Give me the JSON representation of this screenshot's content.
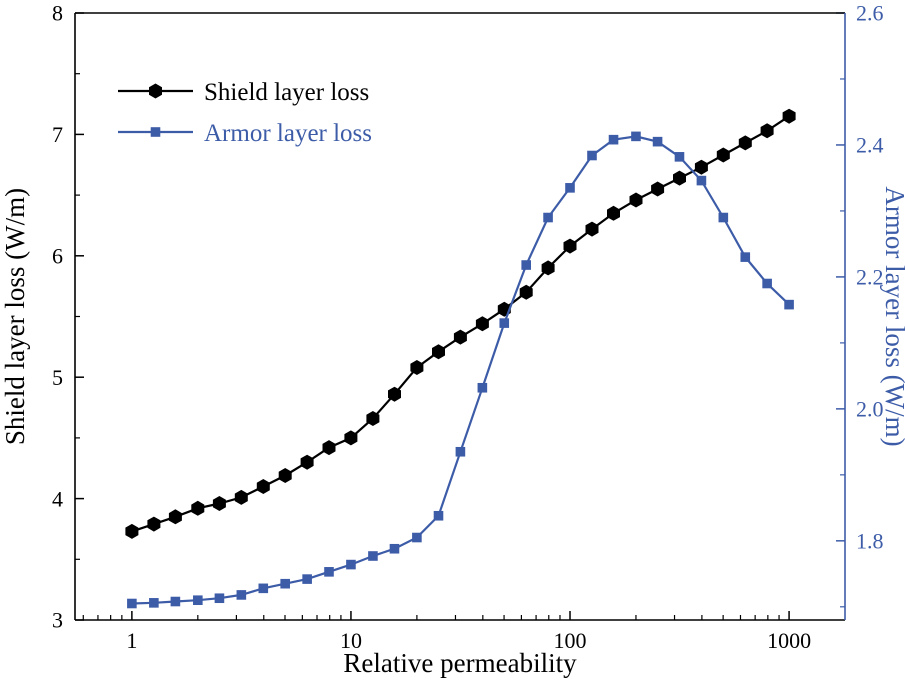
{
  "figure": {
    "background": "#ffffff",
    "accent_blue": "#3d5ca8",
    "accent_black": "#000000"
  },
  "chart_data": {
    "type": "line",
    "x_scale": "log",
    "xlabel": "Relative permeability",
    "xlim": [
      0.55,
      1800
    ],
    "x_ticks": [
      1,
      10,
      100,
      1000
    ],
    "x_tick_labels": [
      "1",
      "10",
      "100",
      "1000"
    ],
    "grid": false,
    "left_axis": {
      "label": "Shield layer loss (W/m)",
      "color": "#000000",
      "lim": [
        3,
        8
      ],
      "ticks": [
        3,
        4,
        5,
        6,
        7,
        8
      ],
      "minor_ticks": [
        3.5,
        4.5,
        5.5,
        6.5,
        7.5
      ]
    },
    "right_axis": {
      "label": "Armor layer loss (W/m)",
      "color": "#3d5ca8",
      "lim": [
        1.68,
        2.6
      ],
      "ticks": [
        1.8,
        2.0,
        2.2,
        2.4,
        2.6
      ],
      "minor_ticks": [
        1.7,
        1.9,
        2.1,
        2.3,
        2.5
      ]
    },
    "x": [
      1,
      1.26,
      1.58,
      2,
      2.51,
      3.16,
      3.98,
      5.01,
      6.31,
      7.94,
      10,
      12.6,
      15.8,
      20,
      25.1,
      31.6,
      39.8,
      50.1,
      63.1,
      79.4,
      100,
      126,
      158,
      200,
      251,
      316,
      398,
      501,
      631,
      794,
      1000
    ],
    "series": [
      {
        "name": "Shield layer loss",
        "axis": "left",
        "color": "#000000",
        "marker": "hexagon",
        "values": [
          3.73,
          3.79,
          3.85,
          3.92,
          3.96,
          4.01,
          4.1,
          4.19,
          4.3,
          4.42,
          4.5,
          4.66,
          4.86,
          5.08,
          5.21,
          5.33,
          5.44,
          5.56,
          5.7,
          5.9,
          6.08,
          6.22,
          6.35,
          6.46,
          6.55,
          6.64,
          6.73,
          6.83,
          6.93,
          7.03,
          7.15
        ]
      },
      {
        "name": "Armor layer loss",
        "axis": "right",
        "color": "#3d5ca8",
        "marker": "square",
        "values": [
          1.705,
          1.706,
          1.708,
          1.71,
          1.713,
          1.718,
          1.728,
          1.735,
          1.742,
          1.753,
          1.764,
          1.777,
          1.788,
          1.805,
          1.838,
          1.935,
          2.032,
          2.13,
          2.218,
          2.29,
          2.335,
          2.384,
          2.408,
          2.413,
          2.405,
          2.382,
          2.346,
          2.29,
          2.23,
          2.19,
          2.158
        ]
      }
    ],
    "legend": {
      "position": "upper-left",
      "entries": [
        "Shield layer loss",
        "Armor layer loss"
      ]
    }
  }
}
